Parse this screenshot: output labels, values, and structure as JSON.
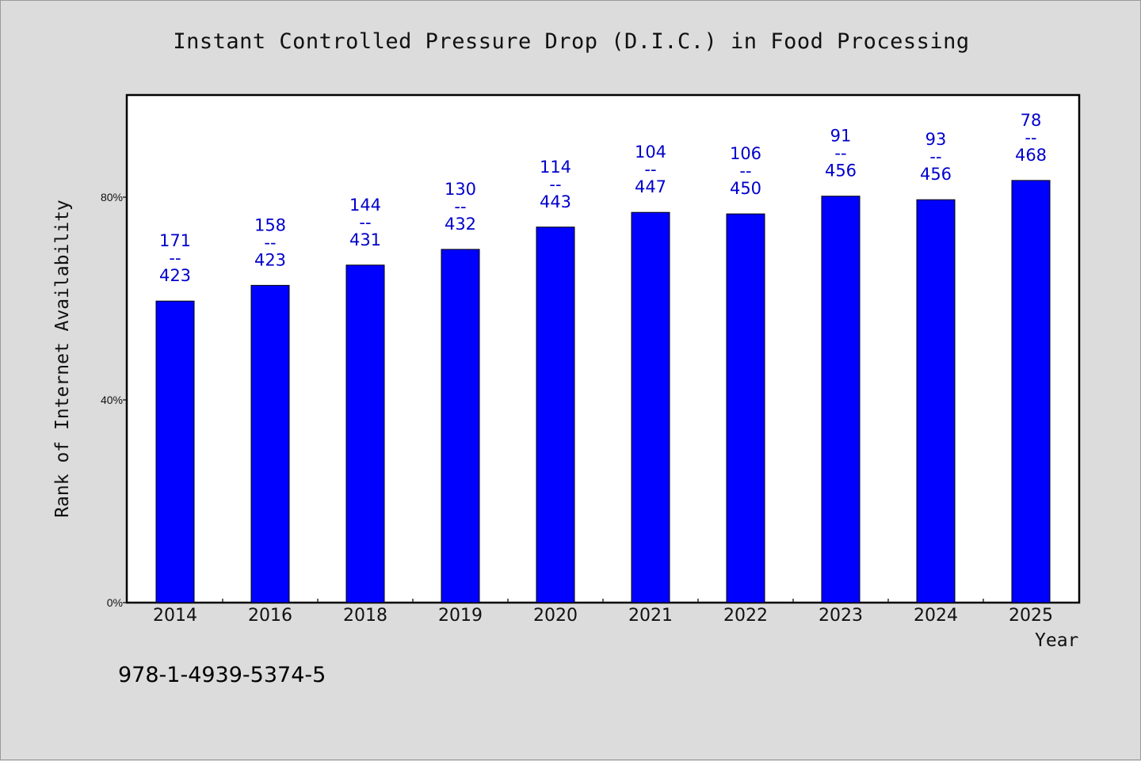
{
  "chart_data": {
    "type": "bar",
    "title": "Instant Controlled Pressure Drop (D.I.C.) in Food Processing",
    "xlabel": "Year",
    "ylabel": "Rank of Internet Availability",
    "categories": [
      "2014",
      "2016",
      "2018",
      "2019",
      "2020",
      "2021",
      "2022",
      "2023",
      "2024",
      "2025"
    ],
    "values": [
      59.5,
      62.6,
      66.6,
      69.7,
      74.1,
      77.0,
      76.7,
      80.2,
      79.5,
      83.3
    ],
    "value_unit": "%",
    "annotations": [
      [
        "171",
        "--",
        "423"
      ],
      [
        "158",
        "--",
        "423"
      ],
      [
        "144",
        "--",
        "431"
      ],
      [
        "130",
        "--",
        "432"
      ],
      [
        "114",
        "--",
        "443"
      ],
      [
        "104",
        "--",
        "447"
      ],
      [
        "106",
        "--",
        "450"
      ],
      [
        "91",
        "--",
        "456"
      ],
      [
        "93",
        "--",
        "456"
      ],
      [
        "78",
        "--",
        "468"
      ]
    ],
    "yticks": [
      0,
      40,
      80
    ],
    "ytick_labels": [
      "0%",
      "40%",
      "80%"
    ],
    "ylim": [
      0,
      100
    ],
    "grid": false,
    "legend": "none",
    "colors": {
      "bar": "#0000ff",
      "label": "#0000cc",
      "background": "#dcdcdc",
      "plot_bg": "#ffffff"
    }
  },
  "footnote": "978-1-4939-5374-5"
}
